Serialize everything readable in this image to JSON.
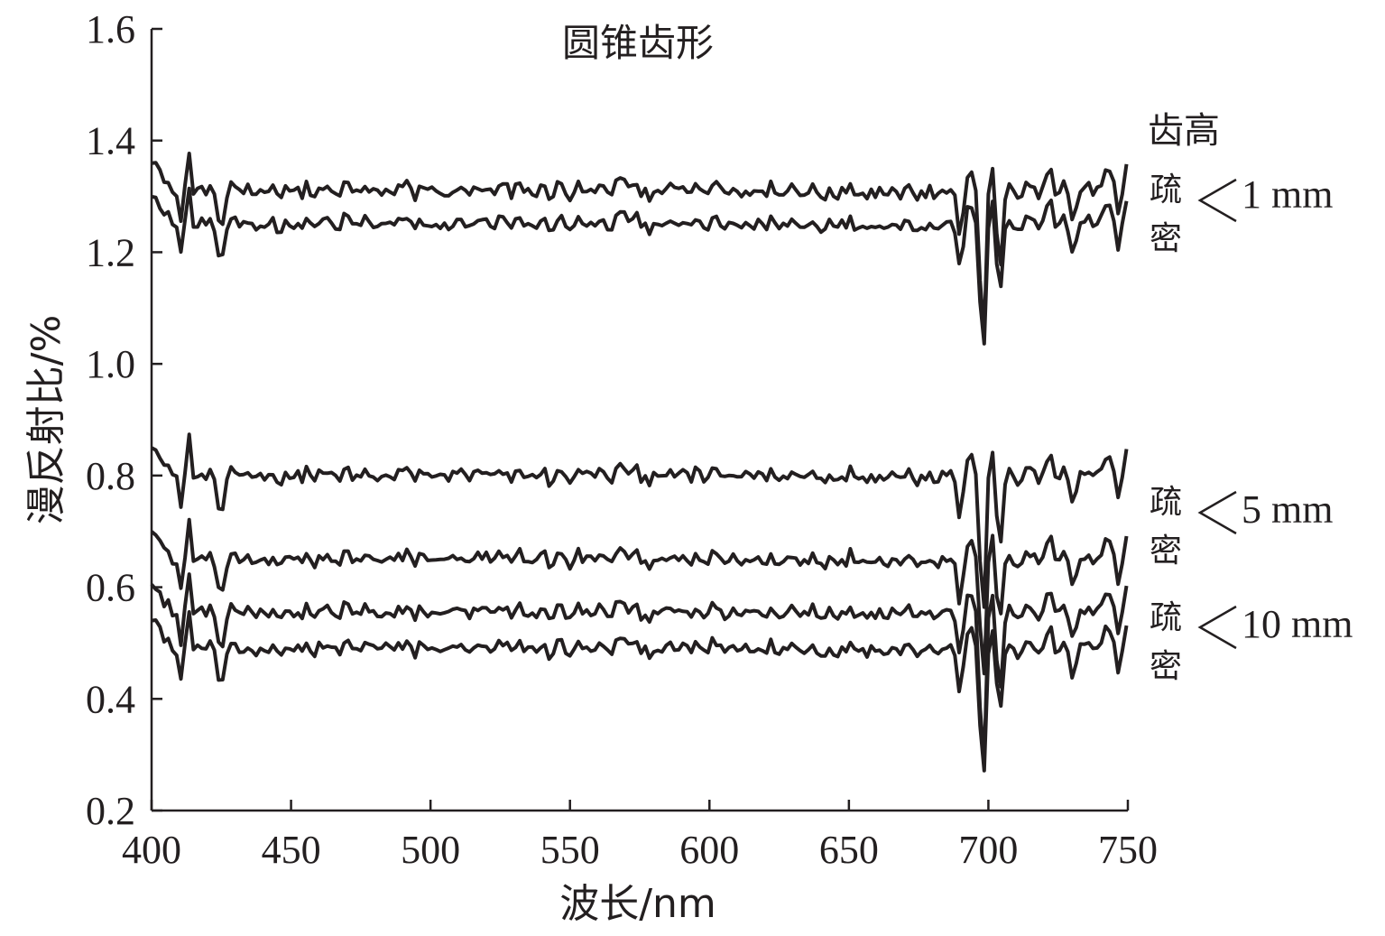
{
  "chart_data": {
    "type": "line",
    "title": "圆锥齿形",
    "xlabel": "波长/nm",
    "ylabel": "漫反射比/%",
    "xlim": [
      400,
      750
    ],
    "ylim": [
      0.2,
      1.6
    ],
    "x_ticks": [
      "400",
      "450",
      "500",
      "550",
      "600",
      "650",
      "700",
      "750"
    ],
    "y_ticks": [
      "0.2",
      "0.4",
      "0.6",
      "0.8",
      "1.0",
      "1.2",
      "1.4",
      "1.6"
    ],
    "grid": false,
    "legend": {
      "header": "齿高",
      "groups": [
        {
          "upper": "疏",
          "lower": "密",
          "value": "1 mm"
        },
        {
          "upper": "疏",
          "lower": "密",
          "value": "5 mm"
        },
        {
          "upper": "疏",
          "lower": "密",
          "value": "10 mm"
        }
      ]
    },
    "series": [
      {
        "base": 1.31,
        "dip": 0.28
      },
      {
        "base": 1.25,
        "dip": 0.24
      },
      {
        "base": 0.8,
        "dip": 0.26
      },
      {
        "base": 0.65,
        "dip": 0.22
      },
      {
        "base": 0.555,
        "dip": 0.3
      },
      {
        "base": 0.49,
        "dip": 0.24
      }
    ],
    "features": {
      "start_peak_wavelength": 401,
      "spike_wavelength": 413,
      "dip_wavelength": 425,
      "bump_wavelength": 569,
      "deep_dip_wavelength": 698,
      "second_dip_wavelength": 704
    }
  }
}
